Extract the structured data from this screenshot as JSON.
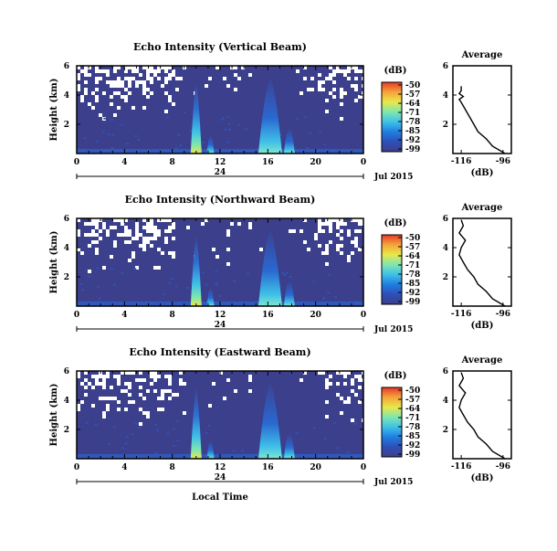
{
  "colors": {
    "background": "#3b3f8c",
    "axes": "#000000",
    "colorbar": [
      "#3b3f8c",
      "#2e4fb8",
      "#1e7fe0",
      "#3fc0e8",
      "#7fe6b0",
      "#e8e84a",
      "#f5a43a",
      "#e63a2a"
    ]
  },
  "chart_data": [
    {
      "type": "heatmap",
      "title": "Echo Intensity (Vertical Beam)",
      "ylabel": "Height (km)",
      "ylim": [
        0,
        6
      ],
      "yticks": [
        "6",
        "4",
        "2"
      ],
      "xlim": [
        0,
        24
      ],
      "xticks": [
        "0",
        "4",
        "8",
        "12",
        "16",
        "20",
        "0"
      ],
      "date_label": "24",
      "month_label": "Jul 2015",
      "colorbar": {
        "label": "(dB)",
        "ticks": [
          "-50",
          "-57",
          "-64",
          "-71",
          "-78",
          "-85",
          "-92",
          "-99"
        ]
      },
      "features": [
        {
          "time_h": 10.0,
          "max_height_km": 5.0,
          "peak_db": -57
        },
        {
          "time_h": 16.2,
          "max_height_km": 5.4,
          "peak_db": -78
        }
      ],
      "profile": {
        "title": "Average",
        "xlabel": "(dB)",
        "xticks": [
          "-116",
          "-96"
        ],
        "xlim": [
          -120,
          -92
        ],
        "yticks": [
          "6",
          "4",
          "2"
        ],
        "ylim": [
          0,
          6
        ],
        "height_km": [
          0.0,
          0.5,
          1.0,
          1.5,
          2.0,
          2.5,
          3.0,
          3.5,
          3.7,
          3.9,
          4.1,
          4.3,
          4.6
        ],
        "db": [
          -95,
          -101,
          -104,
          -108,
          -110,
          -112,
          -114,
          -116,
          -117,
          -115,
          -117,
          -116,
          -116
        ]
      }
    },
    {
      "type": "heatmap",
      "title": "Echo Intensity (Northward Beam)",
      "ylabel": "Height (km)",
      "ylim": [
        0,
        6
      ],
      "yticks": [
        "6",
        "4",
        "2"
      ],
      "xlim": [
        0,
        24
      ],
      "xticks": [
        "0",
        "4",
        "8",
        "12",
        "16",
        "20",
        "0"
      ],
      "date_label": "24",
      "month_label": "Jul 2015",
      "colorbar": {
        "label": "(dB)",
        "ticks": [
          "-50",
          "-57",
          "-64",
          "-71",
          "-78",
          "-85",
          "-92",
          "-99"
        ]
      },
      "features": [
        {
          "time_h": 10.0,
          "max_height_km": 5.0,
          "peak_db": -57
        },
        {
          "time_h": 16.2,
          "max_height_km": 5.4,
          "peak_db": -78
        }
      ],
      "profile": {
        "title": "Average",
        "xlabel": "(dB)",
        "xticks": [
          "-116",
          "-96"
        ],
        "xlim": [
          -120,
          -92
        ],
        "yticks": [
          "6",
          "4",
          "2"
        ],
        "ylim": [
          0,
          6
        ],
        "height_km": [
          0.0,
          0.5,
          1.0,
          1.5,
          2.0,
          2.5,
          3.0,
          3.5,
          4.0,
          4.5,
          5.0,
          5.5,
          5.9
        ],
        "db": [
          -95,
          -101,
          -104,
          -108,
          -110,
          -113,
          -115,
          -117,
          -116,
          -114,
          -117,
          -115,
          -116
        ]
      }
    },
    {
      "type": "heatmap",
      "title": "Echo Intensity (Eastward Beam)",
      "ylabel": "Height (km)",
      "ylim": [
        0,
        6
      ],
      "yticks": [
        "6",
        "4",
        "2"
      ],
      "xlim": [
        0,
        24
      ],
      "xticks": [
        "0",
        "4",
        "8",
        "12",
        "16",
        "20",
        "0"
      ],
      "date_label": "24",
      "month_label": "Jul 2015",
      "xlabel": "Local Time",
      "colorbar": {
        "label": "(dB)",
        "ticks": [
          "-50",
          "-57",
          "-64",
          "-71",
          "-78",
          "-85",
          "-92",
          "-99"
        ]
      },
      "features": [
        {
          "time_h": 10.0,
          "max_height_km": 5.0,
          "peak_db": -57
        },
        {
          "time_h": 16.2,
          "max_height_km": 5.4,
          "peak_db": -78
        }
      ],
      "profile": {
        "title": "Average",
        "xlabel": "(dB)",
        "xticks": [
          "-116",
          "-96"
        ],
        "xlim": [
          -120,
          -92
        ],
        "yticks": [
          "6",
          "4",
          "2"
        ],
        "ylim": [
          0,
          6
        ],
        "height_km": [
          0.0,
          0.5,
          1.0,
          1.5,
          2.0,
          2.5,
          3.0,
          3.5,
          4.0,
          4.5,
          5.0,
          5.5,
          5.9
        ],
        "db": [
          -95,
          -101,
          -104,
          -108,
          -110,
          -113,
          -115,
          -117,
          -116,
          -114,
          -117,
          -115,
          -116
        ]
      }
    }
  ]
}
